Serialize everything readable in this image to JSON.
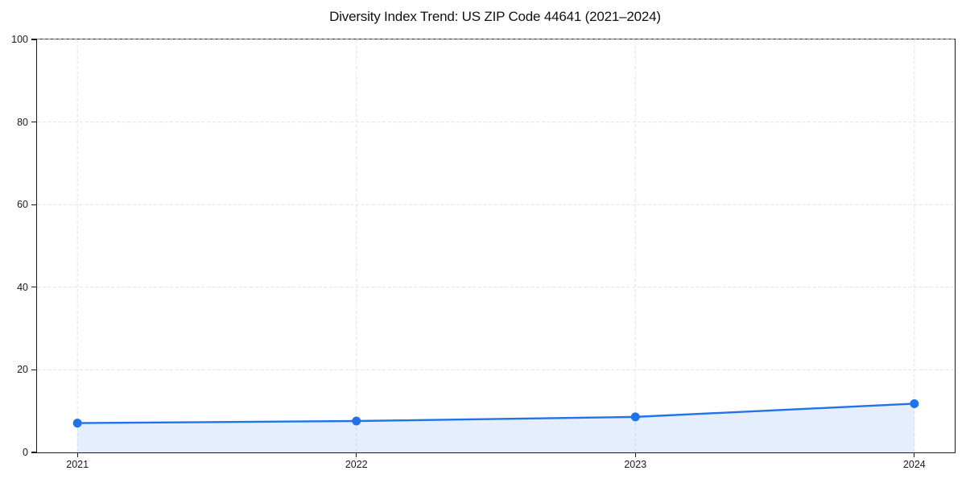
{
  "chart_data": {
    "type": "line",
    "title": "Diversity Index Trend: US ZIP Code 44641 (2021–2024)",
    "x": [
      2021,
      2022,
      2023,
      2024
    ],
    "series": [
      {
        "name": "Diversity Index",
        "values": [
          7.1,
          7.6,
          8.6,
          11.8
        ]
      }
    ],
    "xlabel": "",
    "ylabel": "",
    "ylim": [
      0,
      100
    ],
    "yticks": [
      0,
      20,
      40,
      60,
      80,
      100
    ],
    "xticks": [
      "2021",
      "2022",
      "2023",
      "2024"
    ],
    "grid": true,
    "grid_style": "dashed",
    "legend": false,
    "area_fill": true,
    "marker": "circle",
    "colors": {
      "line": "#2273e8",
      "marker": "#2273e8",
      "area_fill": "rgba(34,115,232,0.12)",
      "gridline": "#e2e2e2",
      "spine": "#1a1a1a",
      "tick_label": "#1a1a1a",
      "title": "#111111",
      "background": "#ffffff"
    }
  }
}
